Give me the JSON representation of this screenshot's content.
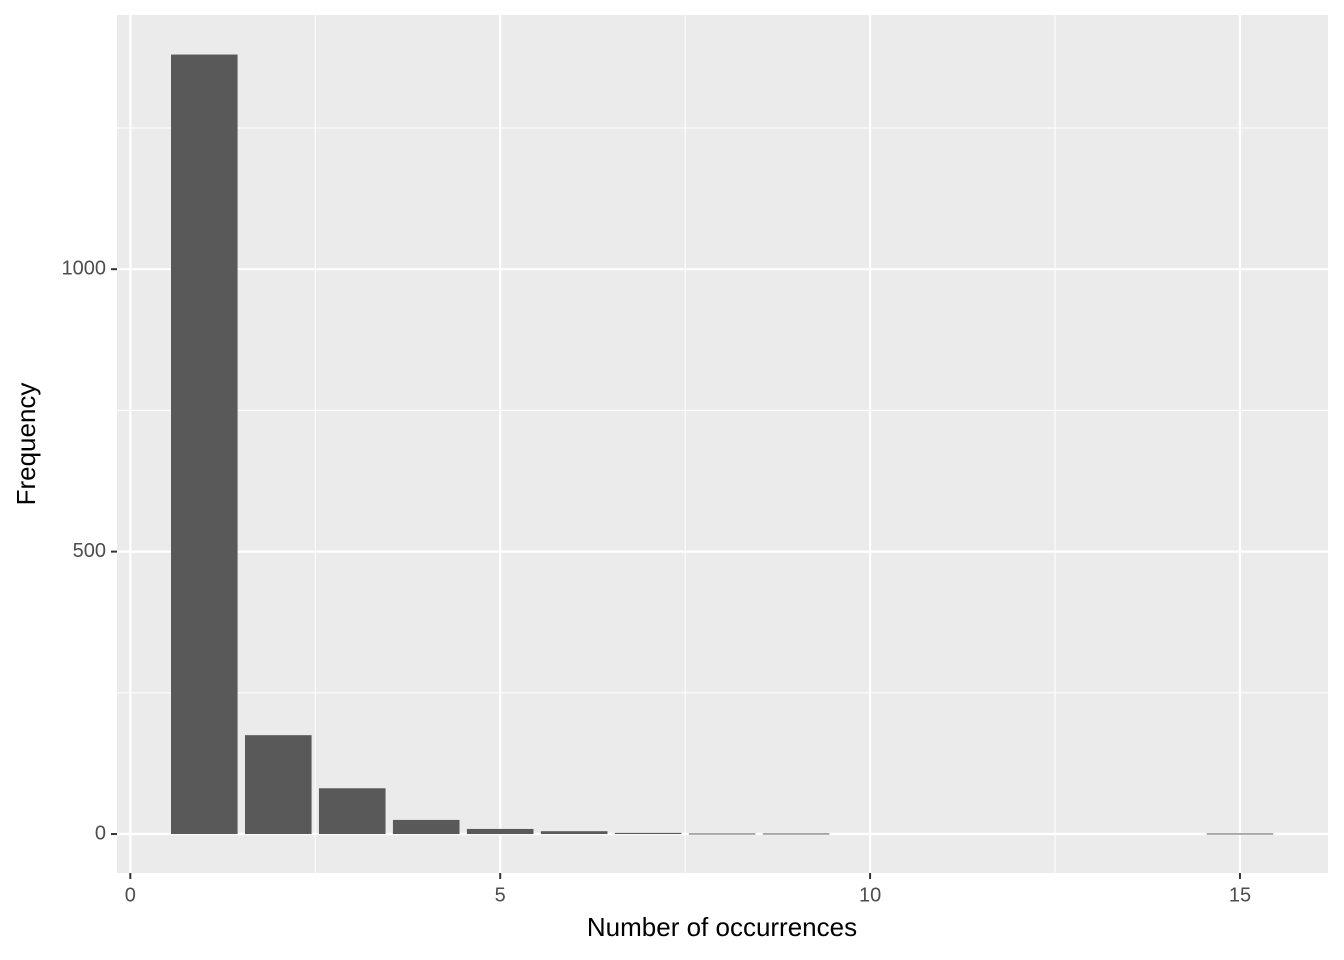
{
  "chart_data": {
    "type": "bar",
    "x_label": "Number of occurrences",
    "y_label": "Frequency",
    "x": [
      1,
      2,
      3,
      4,
      5,
      6,
      7,
      8,
      9,
      15
    ],
    "values": [
      1380,
      175,
      81,
      25,
      9,
      5,
      2,
      1,
      1,
      1
    ],
    "bar_width": 0.9,
    "color": "#595959",
    "xlim": [
      -0.18,
      16.19
    ],
    "xticks": [
      0,
      5,
      10,
      15
    ],
    "minor_xticks": [
      2.5,
      7.5,
      12.5
    ],
    "ylim": [
      -69,
      1450
    ],
    "yticks": [
      0,
      500,
      1000
    ],
    "minor_yticks": [
      250,
      750,
      1250
    ],
    "grid": true
  }
}
